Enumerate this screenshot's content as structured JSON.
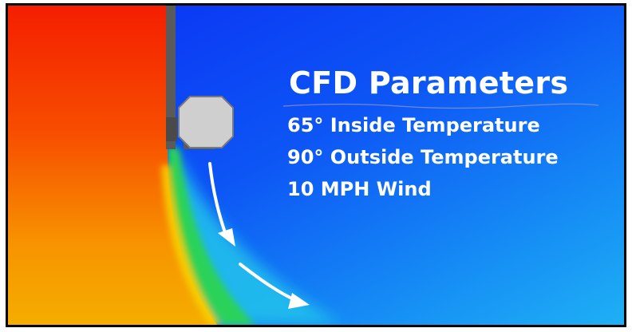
{
  "title": "CFD Parameters",
  "parameters": [
    "65° Inside Temperature",
    "90° Outside Temperature",
    "10 MPH Wind"
  ],
  "colors": {
    "cold": "#0a3cf5",
    "cool": "#1fa8f5",
    "mid": "#22d46a",
    "warm": "#f5a500",
    "hot": "#f52200",
    "outlet": "#cfcfcf",
    "wall": "#5a5a5a",
    "arrow": "#ffffff"
  },
  "icons": {
    "airflow_arrows": "curved-arrow-icon",
    "unit": "air-curtain-unit-icon"
  }
}
